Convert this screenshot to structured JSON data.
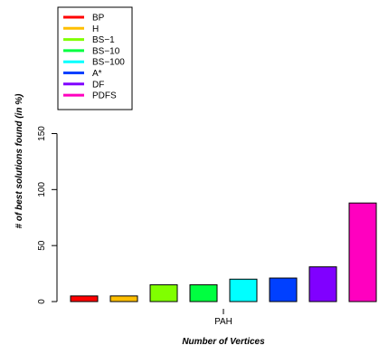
{
  "chart_data": {
    "type": "bar",
    "categories": [
      "PAH"
    ],
    "series": [
      {
        "name": "BP",
        "values": [
          5
        ],
        "color": "#ff0000"
      },
      {
        "name": "H",
        "values": [
          5
        ],
        "color": "#ffbf00"
      },
      {
        "name": "BS−1",
        "values": [
          15
        ],
        "color": "#80ff00"
      },
      {
        "name": "BS−10",
        "values": [
          15
        ],
        "color": "#00ff40"
      },
      {
        "name": "BS−100",
        "values": [
          20
        ],
        "color": "#00ffff"
      },
      {
        "name": "A*",
        "values": [
          21
        ],
        "color": "#0040ff"
      },
      {
        "name": "DF",
        "values": [
          31
        ],
        "color": "#8000ff"
      },
      {
        "name": "PDFS",
        "values": [
          88
        ],
        "color": "#ff00bf"
      }
    ],
    "xlabel": "Number of Vertices",
    "ylabel": "# of best solutions found (in %)",
    "yticks": [
      0,
      50,
      100,
      150
    ],
    "ylim": [
      0,
      175
    ],
    "legend_position": "top-left",
    "grid": false
  }
}
